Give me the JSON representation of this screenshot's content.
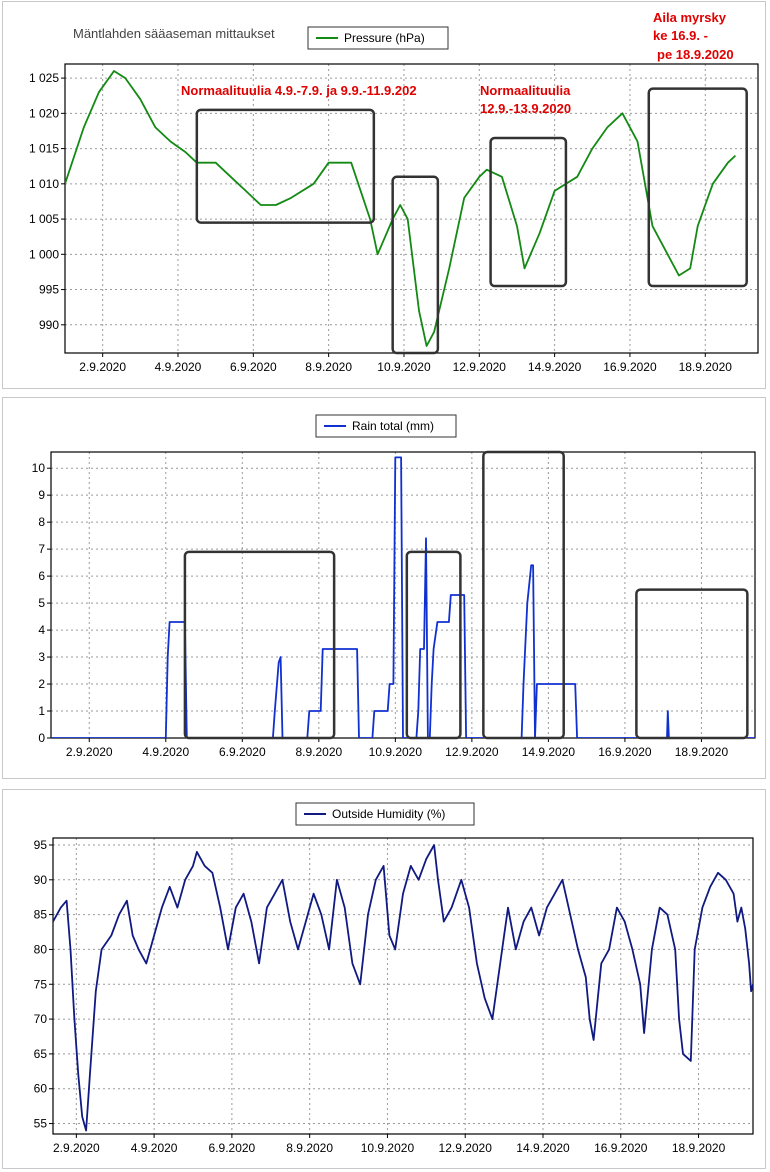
{
  "page": {
    "station_title": "Mäntlahden sääaseman mittaukset"
  },
  "chart_data": [
    {
      "type": "line",
      "series": [
        {
          "name": "Pressure (hPa)",
          "color": "#138a13"
        }
      ],
      "x_ticks": [
        "2.9.2020",
        "4.9.2020",
        "6.9.2020",
        "8.9.2020",
        "10.9.2020",
        "12.9.2020",
        "14.9.2020",
        "16.9.2020",
        "18.9.2020"
      ],
      "y_ticks": [
        "990",
        "995",
        "1 000",
        "1 005",
        "1 010",
        "1 015",
        "1 020",
        "1 025"
      ],
      "y_values": [
        990,
        995,
        1000,
        1005,
        1010,
        1015,
        1020,
        1025
      ],
      "ylim": [
        986,
        1027
      ],
      "xlim": [
        1.0,
        19.4
      ],
      "grid": true,
      "legend_position": "top",
      "points": [
        [
          1.0,
          1010
        ],
        [
          1.5,
          1018
        ],
        [
          1.9,
          1023
        ],
        [
          2.3,
          1026
        ],
        [
          2.6,
          1025
        ],
        [
          3.0,
          1022
        ],
        [
          3.4,
          1018
        ],
        [
          3.8,
          1016
        ],
        [
          4.2,
          1014.5
        ],
        [
          4.5,
          1013
        ],
        [
          5.0,
          1013
        ],
        [
          5.4,
          1011
        ],
        [
          5.8,
          1009
        ],
        [
          6.2,
          1007
        ],
        [
          6.6,
          1007
        ],
        [
          7.0,
          1008
        ],
        [
          7.6,
          1010
        ],
        [
          8.0,
          1013
        ],
        [
          8.6,
          1013
        ],
        [
          9.1,
          1005
        ],
        [
          9.3,
          1000
        ],
        [
          9.7,
          1005
        ],
        [
          9.9,
          1007
        ],
        [
          10.1,
          1005
        ],
        [
          10.4,
          992
        ],
        [
          10.6,
          987
        ],
        [
          10.8,
          989
        ],
        [
          11.2,
          998
        ],
        [
          11.6,
          1008
        ],
        [
          12.0,
          1011
        ],
        [
          12.2,
          1012
        ],
        [
          12.6,
          1011
        ],
        [
          13.0,
          1004
        ],
        [
          13.2,
          998
        ],
        [
          13.6,
          1003
        ],
        [
          14.0,
          1009
        ],
        [
          14.6,
          1011
        ],
        [
          15.0,
          1015
        ],
        [
          15.4,
          1018
        ],
        [
          15.8,
          1020
        ],
        [
          16.2,
          1016
        ],
        [
          16.6,
          1004
        ],
        [
          17.0,
          1000
        ],
        [
          17.3,
          997
        ],
        [
          17.6,
          998
        ],
        [
          17.8,
          1004
        ],
        [
          18.2,
          1010
        ],
        [
          18.6,
          1013
        ],
        [
          18.8,
          1014
        ]
      ],
      "annotations": [
        {
          "text": "Normaalituulia 4.9.-7.9. ja 9.9.-11.9.202"
        },
        {
          "text": "Normaalituulia"
        },
        {
          "text": "12.9.-13.9.2020"
        },
        {
          "text": "Aila myrsky"
        },
        {
          "text": "ke 16.9. -"
        },
        {
          "text": "pe 18.9.2020"
        }
      ],
      "boxes": [
        {
          "x": [
            4.5,
            9.2
          ],
          "y": [
            1004.5,
            1020.5
          ]
        },
        {
          "x": [
            9.7,
            10.9
          ],
          "y": [
            986,
            1011
          ]
        },
        {
          "x": [
            12.3,
            14.3
          ],
          "y": [
            995.5,
            1016.5
          ]
        },
        {
          "x": [
            16.5,
            19.1
          ],
          "y": [
            995.5,
            1023.5
          ]
        }
      ]
    },
    {
      "type": "line",
      "series": [
        {
          "name": "Rain total (mm)",
          "color": "#1030d0"
        }
      ],
      "x_ticks": [
        "2.9.2020",
        "4.9.2020",
        "6.9.2020",
        "8.9.2020",
        "10.9.2020",
        "12.9.2020",
        "14.9.2020",
        "16.9.2020",
        "18.9.2020"
      ],
      "y_ticks": [
        "0",
        "1",
        "2",
        "3",
        "4",
        "5",
        "6",
        "7",
        "8",
        "9",
        "10"
      ],
      "y_values": [
        0,
        1,
        2,
        3,
        4,
        5,
        6,
        7,
        8,
        9,
        10
      ],
      "ylim": [
        0,
        10.6
      ],
      "xlim": [
        1.0,
        19.4
      ],
      "grid": true,
      "legend_position": "top",
      "points": [
        [
          1.0,
          0
        ],
        [
          4.0,
          0
        ],
        [
          4.05,
          3
        ],
        [
          4.1,
          4.3
        ],
        [
          4.5,
          4.3
        ],
        [
          4.55,
          0
        ],
        [
          6.8,
          0
        ],
        [
          6.85,
          1
        ],
        [
          6.95,
          2.8
        ],
        [
          7.0,
          3.0
        ],
        [
          7.05,
          0
        ],
        [
          7.7,
          0
        ],
        [
          7.75,
          1
        ],
        [
          8.05,
          1
        ],
        [
          8.1,
          3.3
        ],
        [
          9.0,
          3.3
        ],
        [
          9.05,
          0
        ],
        [
          9.4,
          0
        ],
        [
          9.45,
          1
        ],
        [
          9.8,
          1
        ],
        [
          9.85,
          2
        ],
        [
          9.95,
          2
        ],
        [
          10.0,
          10.4
        ],
        [
          10.15,
          10.4
        ],
        [
          10.2,
          0
        ],
        [
          10.55,
          0
        ],
        [
          10.6,
          1
        ],
        [
          10.65,
          3.3
        ],
        [
          10.75,
          3.3
        ],
        [
          10.8,
          7.4
        ],
        [
          10.85,
          0
        ],
        [
          10.9,
          0
        ],
        [
          10.95,
          2
        ],
        [
          11.0,
          3.3
        ],
        [
          11.1,
          4.3
        ],
        [
          11.4,
          4.3
        ],
        [
          11.45,
          5.3
        ],
        [
          11.8,
          5.3
        ],
        [
          11.85,
          0
        ],
        [
          13.3,
          0
        ],
        [
          13.35,
          2
        ],
        [
          13.45,
          5
        ],
        [
          13.55,
          6.4
        ],
        [
          13.6,
          6.4
        ],
        [
          13.65,
          0
        ],
        [
          13.7,
          2
        ],
        [
          14.7,
          2
        ],
        [
          14.75,
          0
        ],
        [
          17.1,
          0
        ],
        [
          17.12,
          1
        ],
        [
          17.15,
          0
        ],
        [
          19.4,
          0
        ]
      ],
      "boxes": [
        {
          "x": [
            4.5,
            8.4
          ],
          "y": [
            0,
            6.9
          ]
        },
        {
          "x": [
            10.3,
            11.7
          ],
          "y": [
            0,
            6.9
          ]
        },
        {
          "x": [
            12.3,
            14.4
          ],
          "y": [
            0,
            10.6
          ]
        },
        {
          "x": [
            16.3,
            19.2
          ],
          "y": [
            0,
            5.5
          ]
        }
      ]
    },
    {
      "type": "line",
      "series": [
        {
          "name": "Outside Humidity (%)",
          "color": "#101a80"
        }
      ],
      "x_ticks": [
        "2.9.2020",
        "4.9.2020",
        "6.9.2020",
        "8.9.2020",
        "10.9.2020",
        "12.9.2020",
        "14.9.2020",
        "16.9.2020",
        "18.9.2020"
      ],
      "y_ticks": [
        "55",
        "60",
        "65",
        "70",
        "75",
        "80",
        "85",
        "90",
        "95"
      ],
      "y_values": [
        55,
        60,
        65,
        70,
        75,
        80,
        85,
        90,
        95
      ],
      "ylim": [
        53.5,
        96
      ],
      "xlim": [
        1.4,
        19.4
      ],
      "grid": true,
      "legend_position": "top",
      "points": [
        [
          1.4,
          84
        ],
        [
          1.6,
          86
        ],
        [
          1.75,
          87
        ],
        [
          1.85,
          80
        ],
        [
          1.95,
          70
        ],
        [
          2.05,
          62
        ],
        [
          2.15,
          56
        ],
        [
          2.25,
          54
        ],
        [
          2.35,
          62
        ],
        [
          2.5,
          74
        ],
        [
          2.65,
          80
        ],
        [
          2.9,
          82
        ],
        [
          3.1,
          85
        ],
        [
          3.3,
          87
        ],
        [
          3.45,
          82
        ],
        [
          3.6,
          80
        ],
        [
          3.8,
          78
        ],
        [
          4.0,
          82
        ],
        [
          4.2,
          86
        ],
        [
          4.4,
          89
        ],
        [
          4.6,
          86
        ],
        [
          4.8,
          90
        ],
        [
          5.0,
          92
        ],
        [
          5.1,
          94
        ],
        [
          5.3,
          92
        ],
        [
          5.5,
          91
        ],
        [
          5.7,
          86
        ],
        [
          5.9,
          80
        ],
        [
          6.1,
          86
        ],
        [
          6.3,
          88
        ],
        [
          6.5,
          84
        ],
        [
          6.7,
          78
        ],
        [
          6.9,
          86
        ],
        [
          7.1,
          88
        ],
        [
          7.3,
          90
        ],
        [
          7.5,
          84
        ],
        [
          7.7,
          80
        ],
        [
          7.9,
          84
        ],
        [
          8.1,
          88
        ],
        [
          8.3,
          85
        ],
        [
          8.5,
          80
        ],
        [
          8.7,
          90
        ],
        [
          8.9,
          86
        ],
        [
          9.1,
          78
        ],
        [
          9.3,
          75
        ],
        [
          9.5,
          85
        ],
        [
          9.7,
          90
        ],
        [
          9.9,
          92
        ],
        [
          10.05,
          82
        ],
        [
          10.2,
          80
        ],
        [
          10.4,
          88
        ],
        [
          10.6,
          92
        ],
        [
          10.8,
          90
        ],
        [
          11.0,
          93
        ],
        [
          11.2,
          95
        ],
        [
          11.3,
          90
        ],
        [
          11.45,
          84
        ],
        [
          11.65,
          86
        ],
        [
          11.9,
          90
        ],
        [
          12.1,
          86
        ],
        [
          12.3,
          78
        ],
        [
          12.5,
          73
        ],
        [
          12.7,
          70
        ],
        [
          12.9,
          78
        ],
        [
          13.1,
          86
        ],
        [
          13.3,
          80
        ],
        [
          13.5,
          84
        ],
        [
          13.7,
          86
        ],
        [
          13.9,
          82
        ],
        [
          14.1,
          86
        ],
        [
          14.3,
          88
        ],
        [
          14.5,
          90
        ],
        [
          14.7,
          85
        ],
        [
          14.9,
          80
        ],
        [
          15.1,
          76
        ],
        [
          15.2,
          70
        ],
        [
          15.3,
          67
        ],
        [
          15.5,
          78
        ],
        [
          15.7,
          80
        ],
        [
          15.9,
          86
        ],
        [
          16.1,
          84
        ],
        [
          16.3,
          80
        ],
        [
          16.5,
          75
        ],
        [
          16.6,
          68
        ],
        [
          16.8,
          80
        ],
        [
          17.0,
          86
        ],
        [
          17.2,
          85
        ],
        [
          17.4,
          80
        ],
        [
          17.5,
          70
        ],
        [
          17.6,
          65
        ],
        [
          17.8,
          64
        ],
        [
          17.9,
          80
        ],
        [
          18.1,
          86
        ],
        [
          18.3,
          89
        ],
        [
          18.5,
          91
        ],
        [
          18.7,
          90
        ],
        [
          18.9,
          88
        ],
        [
          19.0,
          84
        ],
        [
          19.1,
          86
        ],
        [
          19.2,
          83
        ],
        [
          19.3,
          78
        ],
        [
          19.35,
          74
        ],
        [
          19.4,
          75
        ]
      ]
    }
  ]
}
